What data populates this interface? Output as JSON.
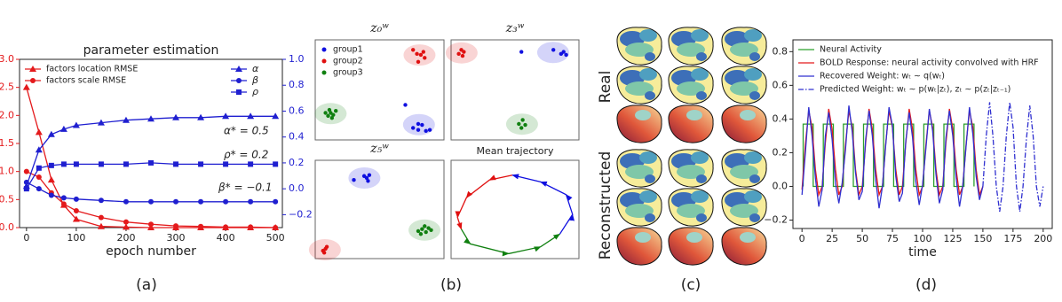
{
  "captions": [
    "(a)",
    "(b)",
    "(c)",
    "(d)"
  ],
  "panel_c": {
    "row_labels": [
      "Real",
      "Reconstructed"
    ]
  },
  "chart_data": [
    {
      "type": "line",
      "title": "parameter estimation",
      "x_label": "epoch number",
      "x": [
        0,
        25,
        50,
        75,
        100,
        150,
        200,
        250,
        300,
        350,
        400,
        450,
        500
      ],
      "xlim": [
        -14,
        514
      ],
      "xticks": [
        0,
        100,
        200,
        300,
        400,
        500
      ],
      "ylim": [
        0,
        3
      ],
      "yticks": [
        {
          "value": 0,
          "label": "0.0"
        },
        {
          "value": 0.5,
          "label": "0.5"
        },
        {
          "value": 1,
          "label": "1.0"
        },
        {
          "value": 1.5,
          "label": "1.5"
        },
        {
          "value": 2,
          "label": "2.0"
        },
        {
          "value": 2.5,
          "label": "2.5"
        },
        {
          "value": 3,
          "label": "3.0"
        }
      ],
      "y2lim": [
        -0.3,
        1.0
      ],
      "y2ticks": [
        {
          "value": -0.2,
          "label": "−0.2"
        },
        {
          "value": 0,
          "label": "0.0"
        },
        {
          "value": 0.2,
          "label": "0.2"
        },
        {
          "value": 0.4,
          "label": "0.4"
        },
        {
          "value": 0.6,
          "label": "0.6"
        },
        {
          "value": 0.8,
          "label": "0.8"
        },
        {
          "value": 1,
          "label": "1.0"
        }
      ],
      "y_tick_color": "#e41a1c",
      "y2_tick_color": "#1f1fd0",
      "legend": "upper left",
      "series": [
        {
          "name": "factors location RMSE",
          "color": "#e41a1c",
          "marker": "triangle",
          "values": [
            2.5,
            1.7,
            0.85,
            0.4,
            0.15,
            0.02,
            0.01,
            0,
            0,
            0,
            0,
            0,
            0
          ]
        },
        {
          "name": "factors scale RMSE",
          "color": "#e41a1c",
          "marker": "circle",
          "values": [
            1.0,
            0.9,
            0.62,
            0.42,
            0.3,
            0.18,
            0.1,
            0.06,
            0.03,
            0.02,
            0.01,
            0.01,
            0
          ]
        },
        {
          "name": "α",
          "color": "#1f1fd0",
          "marker": "triangle",
          "axis": "y2",
          "values": [
            0.02,
            0.3,
            0.42,
            0.46,
            0.49,
            0.51,
            0.53,
            0.54,
            0.55,
            0.55,
            0.56,
            0.56,
            0.56
          ]
        },
        {
          "name": "β",
          "color": "#1f1fd0",
          "marker": "circle",
          "axis": "y2",
          "values": [
            0.05,
            0.0,
            -0.05,
            -0.07,
            -0.08,
            -0.09,
            -0.1,
            -0.1,
            -0.1,
            -0.1,
            -0.1,
            -0.1,
            -0.1
          ]
        },
        {
          "name": "ρ",
          "color": "#1f1fd0",
          "marker": "square",
          "axis": "y2",
          "values": [
            0.0,
            0.16,
            0.18,
            0.19,
            0.19,
            0.19,
            0.19,
            0.2,
            0.19,
            0.19,
            0.19,
            0.19,
            0.19
          ]
        }
      ],
      "annotations": [
        "α* = 0.5",
        "ρ* = 0.2",
        "β* = −0.1"
      ]
    },
    {
      "type": "scatter",
      "title": "z₀ʷ",
      "xlim": [
        0,
        1
      ],
      "ylim": [
        0,
        1
      ],
      "legend": "upper left",
      "series": [
        {
          "name": "group1",
          "color": "#1010e0",
          "x": [
            0.7,
            0.76,
            0.8,
            0.83,
            0.86,
            0.89,
            0.8
          ],
          "values": [
            0.35,
            0.12,
            0.1,
            0.15,
            0.09,
            0.1,
            0.16
          ]
        },
        {
          "name": "group2",
          "color": "#e01010",
          "x": [
            0.76,
            0.79,
            0.82,
            0.84,
            0.8,
            0.85
          ],
          "values": [
            0.9,
            0.86,
            0.85,
            0.88,
            0.78,
            0.82
          ]
        },
        {
          "name": "group3",
          "color": "#108010",
          "x": [
            0.08,
            0.1,
            0.12,
            0.14,
            0.16,
            0.11,
            0.13
          ],
          "values": [
            0.27,
            0.24,
            0.27,
            0.25,
            0.29,
            0.3,
            0.22
          ]
        }
      ]
    },
    {
      "type": "scatter",
      "title": "z₃ʷ",
      "xlim": [
        0,
        1
      ],
      "ylim": [
        0,
        1
      ],
      "series": [
        {
          "color": "#1010e0",
          "x": [
            0.55,
            0.8,
            0.86,
            0.88,
            0.9
          ],
          "values": [
            0.88,
            0.9,
            0.86,
            0.88,
            0.85
          ]
        },
        {
          "color": "#e01010",
          "x": [
            0.06,
            0.08,
            0.1,
            0.09
          ],
          "values": [
            0.86,
            0.9,
            0.88,
            0.84
          ]
        },
        {
          "color": "#108010",
          "x": [
            0.53,
            0.56,
            0.58,
            0.55
          ],
          "values": [
            0.16,
            0.2,
            0.15,
            0.12
          ]
        }
      ]
    },
    {
      "type": "scatter",
      "title": "z₅ʷ",
      "xlim": [
        0,
        1
      ],
      "ylim": [
        0,
        1
      ],
      "series": [
        {
          "color": "#1010e0",
          "x": [
            0.3,
            0.38,
            0.4,
            0.42,
            0.41
          ],
          "values": [
            0.8,
            0.84,
            0.82,
            0.85,
            0.79
          ]
        },
        {
          "color": "#e01010",
          "x": [
            0.06,
            0.08,
            0.09,
            0.07
          ],
          "values": [
            0.08,
            0.1,
            0.12,
            0.06
          ]
        },
        {
          "color": "#108010",
          "x": [
            0.8,
            0.83,
            0.86,
            0.88,
            0.85,
            0.82,
            0.9
          ],
          "values": [
            0.28,
            0.3,
            0.27,
            0.31,
            0.33,
            0.25,
            0.29
          ]
        }
      ]
    },
    {
      "type": "line",
      "title": "Mean trajectory",
      "xlim": [
        0,
        1
      ],
      "ylim": [
        0,
        1
      ],
      "arrows": true,
      "series": [
        {
          "color": "#e01010",
          "x": [
            0.48,
            0.3,
            0.12,
            0.05,
            0.08
          ],
          "values": [
            0.85,
            0.8,
            0.62,
            0.42,
            0.3
          ]
        },
        {
          "color": "#108010",
          "x": [
            0.08,
            0.15,
            0.45,
            0.7,
            0.85
          ],
          "values": [
            0.3,
            0.15,
            0.05,
            0.12,
            0.25
          ]
        },
        {
          "color": "#1010e0",
          "x": [
            0.85,
            0.95,
            0.9,
            0.7,
            0.48
          ],
          "values": [
            0.25,
            0.45,
            0.65,
            0.78,
            0.85
          ]
        }
      ]
    },
    {
      "type": "line",
      "x_label": "time",
      "xlim": [
        -7.5,
        207.5
      ],
      "xticks": [
        0,
        25,
        50,
        75,
        100,
        125,
        150,
        175,
        200
      ],
      "ylim": [
        -0.25,
        0.87
      ],
      "yticks": [
        {
          "value": -0.2,
          "label": "−0.2"
        },
        {
          "value": 0,
          "label": "0.0"
        },
        {
          "value": 0.2,
          "label": "0.2"
        },
        {
          "value": 0.4,
          "label": "0.4"
        },
        {
          "value": 0.6,
          "label": "0.6"
        },
        {
          "value": 0.8,
          "label": "0.8"
        }
      ],
      "legend": "upper left",
      "series": [
        {
          "name": "Neural Activity",
          "color": "#2ca02c",
          "x": [
            1,
            1,
            9.3,
            9.3,
            17.7,
            17.7,
            26,
            26,
            34.3,
            34.3,
            42.6,
            42.6,
            51,
            51,
            59.3,
            59.3,
            67.7,
            67.7,
            76,
            76,
            84.3,
            84.3,
            92.6,
            92.6,
            101,
            101,
            109.3,
            109.3,
            117.7,
            117.7,
            126,
            126,
            134.3,
            134.3,
            142.6,
            142.6
          ],
          "values": [
            0,
            0.37,
            0.37,
            0,
            0,
            0.37,
            0.37,
            0,
            0,
            0.37,
            0.37,
            0,
            0,
            0.37,
            0.37,
            0,
            0,
            0.37,
            0.37,
            0,
            0,
            0.37,
            0.37,
            0,
            0,
            0.37,
            0.37,
            0,
            0,
            0.37,
            0.37,
            0,
            0,
            0.37,
            0.37,
            0
          ]
        },
        {
          "name": "BOLD Response: neural activity convolved with HRF",
          "color": "#e41a1c",
          "x": [
            0,
            2.8,
            5.6,
            8.3,
            11.1,
            13.9,
            16.7,
            19.4,
            22.2,
            25,
            27.8,
            30.6,
            33.3,
            36.1,
            38.9,
            41.7,
            44.4,
            47.2,
            50,
            52.8,
            55.6,
            58.3,
            61.1,
            63.9,
            66.7,
            69.4,
            72.2,
            75,
            77.8,
            80.6,
            83.3,
            86.1,
            88.9,
            91.7,
            94.4,
            97.2,
            100,
            102.8,
            105.6,
            108.3,
            111.1,
            113.9,
            116.7,
            119.4,
            122.2,
            125,
            127.8,
            130.6,
            133.3,
            136.1,
            138.9,
            141.7,
            144.4,
            147.2,
            150
          ],
          "values": [
            -0.02,
            0.25,
            0.45,
            0.35,
            0.1,
            -0.05,
            0.0,
            0.26,
            0.46,
            0.34,
            0.1,
            -0.05,
            0.0,
            0.25,
            0.45,
            0.35,
            0.1,
            -0.05,
            0.0,
            0.26,
            0.46,
            0.34,
            0.1,
            -0.05,
            0.0,
            0.25,
            0.45,
            0.35,
            0.1,
            -0.05,
            0.0,
            0.26,
            0.46,
            0.34,
            0.1,
            -0.05,
            0.0,
            0.25,
            0.45,
            0.35,
            0.1,
            -0.05,
            0.0,
            0.26,
            0.46,
            0.34,
            0.1,
            -0.05,
            0.0,
            0.25,
            0.45,
            0.35,
            0.1,
            -0.05,
            0.0
          ]
        },
        {
          "name": "Recovered Weight: wₜ ∼ q(wₜ)",
          "color": "#3030d0",
          "x": [
            0,
            2.8,
            5.6,
            8.3,
            11.1,
            13.9,
            16.7,
            19.4,
            22.2,
            25,
            27.8,
            30.6,
            33.3,
            36.1,
            38.9,
            41.7,
            44.4,
            47.2,
            50,
            52.8,
            55.6,
            58.3,
            61.1,
            63.9,
            66.7,
            69.4,
            72.2,
            75,
            77.8,
            80.6,
            83.3,
            86.1,
            88.9,
            91.7,
            94.4,
            97.2,
            100,
            102.8,
            105.6,
            108.3,
            111.1,
            113.9,
            116.7,
            119.4,
            122.2,
            125,
            127.8,
            130.6,
            133.3,
            136.1,
            138.9,
            141.7,
            144.4,
            147.2,
            150
          ],
          "values": [
            -0.05,
            0.2,
            0.47,
            0.3,
            0.05,
            -0.12,
            -0.02,
            0.3,
            0.44,
            0.28,
            0.02,
            -0.1,
            0.02,
            0.22,
            0.48,
            0.32,
            0.08,
            -0.08,
            -0.03,
            0.28,
            0.45,
            0.3,
            0.04,
            -0.13,
            0.0,
            0.24,
            0.47,
            0.36,
            0.06,
            -0.09,
            -0.04,
            0.27,
            0.44,
            0.29,
            0.03,
            -0.11,
            0.01,
            0.23,
            0.46,
            0.33,
            0.07,
            -0.1,
            -0.02,
            0.29,
            0.45,
            0.3,
            0.05,
            -0.12,
            0.0,
            0.24,
            0.47,
            0.31,
            0.06,
            -0.08,
            0.0
          ]
        },
        {
          "name": "Predicted Weight: wₜ ∼ p(wₜ|zₜ), zₜ ∼ p(zₜ|zₜ₋₁)",
          "color": "#3030d0",
          "linestyle": "dashdot",
          "x": [
            150,
            152.8,
            155.6,
            158.3,
            161.1,
            163.9,
            166.7,
            169.4,
            172.2,
            175,
            177.8,
            180.6,
            183.3,
            186.1,
            188.9,
            191.7,
            194.4,
            197.2,
            200
          ],
          "values": [
            0.0,
            0.3,
            0.5,
            0.3,
            0.0,
            -0.15,
            0.0,
            0.3,
            0.5,
            0.35,
            0.0,
            -0.15,
            0.0,
            0.28,
            0.48,
            0.3,
            0.0,
            -0.12,
            0.0
          ]
        }
      ]
    }
  ]
}
